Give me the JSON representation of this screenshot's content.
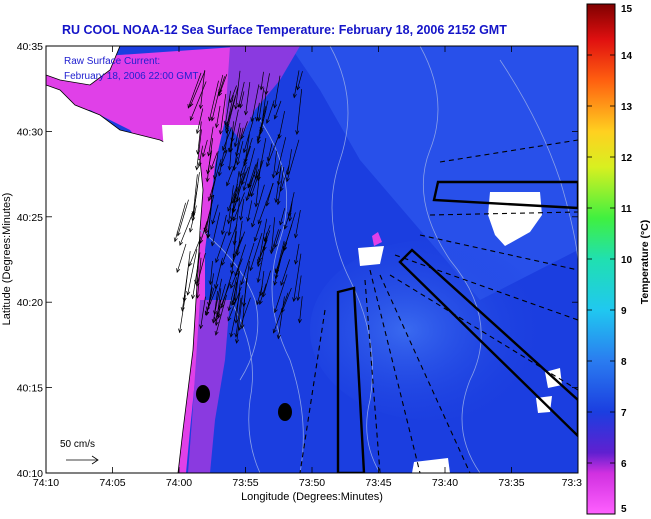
{
  "title": "RU COOL  NOAA-12  Sea Surface Temperature:  February 18, 2006 2152 GMT",
  "overlay": {
    "line1": "Raw Surface Current:",
    "line2": "February 18, 2006 22:00 GMT"
  },
  "scale_label": "50 cm/s",
  "axes": {
    "xlabel": "Longitude (Degrees:Minutes)",
    "ylabel": "Latitude (Degrees:Minutes)",
    "xticks": [
      "74:10",
      "74:05",
      "74:00",
      "73:55",
      "73:50",
      "73:45",
      "73:40",
      "73:35",
      "73:3"
    ],
    "yticks": [
      "40:35",
      "40:30",
      "40:25",
      "40:20",
      "40:15",
      "40:10"
    ]
  },
  "colorbar": {
    "title": "Temperature (°C)",
    "ticks": [
      "15",
      "14",
      "13",
      "12",
      "11",
      "10",
      "9",
      "8",
      "7",
      "6",
      "5"
    ],
    "min": 5,
    "max": 15
  },
  "colors": {
    "ocean": "#1b3ee0",
    "warm_shelf": "#2a55ec",
    "cold_coast": "#e040e8",
    "land": "#ffffff",
    "title": "#1414c8"
  }
}
